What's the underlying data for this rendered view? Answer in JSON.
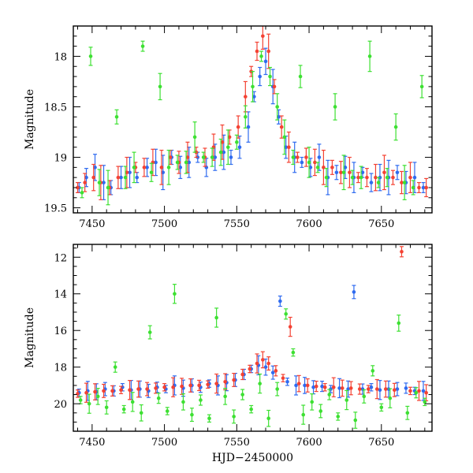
{
  "chart_data": [
    {
      "type": "scatter",
      "title": "",
      "xlabel": "",
      "ylabel": "Magnitude",
      "xlim": [
        7437,
        7685
      ],
      "ylim": [
        19.55,
        17.7
      ],
      "y_inverted": true,
      "x_ticks": [
        7450,
        7500,
        7550,
        7600,
        7650
      ],
      "x_tick_labels": [
        "7450",
        "7500",
        "7550",
        "7600",
        "7650"
      ],
      "y_ticks": [
        18,
        18.5,
        19,
        19.5
      ],
      "y_tick_labels": [
        "18",
        "18.5",
        "19",
        "19.5"
      ],
      "error_bars": true,
      "series": [
        {
          "color": "#2f6bf0",
          "x": [
            7441,
            7446,
            7452,
            7458,
            7463,
            7470,
            7476,
            7481,
            7488,
            7494,
            7499,
            7505,
            7511,
            7517,
            7523,
            7529,
            7535,
            7541,
            7546,
            7552,
            7558,
            7562,
            7566,
            7570,
            7575,
            7579,
            7584,
            7590,
            7595,
            7601,
            7607,
            7613,
            7619,
            7625,
            7631,
            7637,
            7643,
            7649,
            7655,
            7661,
            7667,
            7673,
            7679
          ],
          "y": [
            19.3,
            19.2,
            19.1,
            19.25,
            19.3,
            19.2,
            19.15,
            19.2,
            19.1,
            19.05,
            19.15,
            19.0,
            19.1,
            19.05,
            19.0,
            19.1,
            19.0,
            18.95,
            19.0,
            18.9,
            18.7,
            18.4,
            18.2,
            18.05,
            18.3,
            18.6,
            18.9,
            19.0,
            19.05,
            19.1,
            19.0,
            19.2,
            19.15,
            19.1,
            19.2,
            19.15,
            19.25,
            19.2,
            19.2,
            19.15,
            19.25,
            19.2,
            19.3
          ]
        },
        {
          "color": "#f44233",
          "x": [
            7440,
            7445,
            7451,
            7456,
            7462,
            7468,
            7474,
            7480,
            7486,
            7492,
            7498,
            7504,
            7510,
            7516,
            7522,
            7528,
            7534,
            7540,
            7545,
            7551,
            7556,
            7560,
            7564,
            7568,
            7572,
            7576,
            7581,
            7586,
            7592,
            7598,
            7604,
            7610,
            7616,
            7622,
            7628,
            7634,
            7640,
            7646,
            7652,
            7658,
            7664,
            7670,
            7676,
            7681
          ],
          "y": [
            19.3,
            19.25,
            19.2,
            19.25,
            19.3,
            19.2,
            19.15,
            19.1,
            19.1,
            19.05,
            19.1,
            19.0,
            19.05,
            19.0,
            18.95,
            19.0,
            18.9,
            18.85,
            18.8,
            18.7,
            18.4,
            18.15,
            17.95,
            17.8,
            17.95,
            18.3,
            18.7,
            18.9,
            19.0,
            19.0,
            19.05,
            19.1,
            19.1,
            19.15,
            19.15,
            19.2,
            19.2,
            19.2,
            19.15,
            19.2,
            19.25,
            19.2,
            19.3,
            19.3
          ]
        },
        {
          "color": "#3de032",
          "x": [
            7443,
            7449,
            7455,
            7461,
            7467,
            7473,
            7479,
            7485,
            7491,
            7497,
            7503,
            7509,
            7515,
            7521,
            7527,
            7533,
            7539,
            7544,
            7550,
            7556,
            7561,
            7567,
            7573,
            7578,
            7583,
            7589,
            7594,
            7600,
            7606,
            7612,
            7618,
            7624,
            7630,
            7636,
            7642,
            7648,
            7654,
            7660,
            7666,
            7672,
            7678
          ],
          "y": [
            19.35,
            18.0,
            19.25,
            19.3,
            18.6,
            19.2,
            19.1,
            17.9,
            19.15,
            18.3,
            19.1,
            19.05,
            19.05,
            18.8,
            19.0,
            19.0,
            18.95,
            18.9,
            18.85,
            18.6,
            18.3,
            18.0,
            18.2,
            18.5,
            18.8,
            19.0,
            18.2,
            19.05,
            19.1,
            19.2,
            18.5,
            19.15,
            19.2,
            19.2,
            18.0,
            19.25,
            19.2,
            18.7,
            19.25,
            19.3,
            18.3
          ]
        }
      ]
    },
    {
      "type": "scatter",
      "title": "",
      "xlabel": "HJD−2450000",
      "ylabel": "Magnitude",
      "xlim": [
        7437,
        7685
      ],
      "ylim": [
        21.5,
        11.3
      ],
      "y_inverted": true,
      "x_ticks": [
        7450,
        7500,
        7550,
        7600,
        7650
      ],
      "x_tick_labels": [
        "7450",
        "7500",
        "7550",
        "7600",
        "7650"
      ],
      "y_ticks": [
        12,
        14,
        16,
        18,
        20
      ],
      "y_tick_labels": [
        "12",
        "14",
        "16",
        "18",
        "20"
      ],
      "error_bars": true,
      "series": [
        {
          "color": "#2f6bf0",
          "x": [
            7441,
            7447,
            7453,
            7459,
            7465,
            7471,
            7477,
            7483,
            7489,
            7495,
            7501,
            7507,
            7513,
            7519,
            7525,
            7531,
            7537,
            7543,
            7549,
            7555,
            7560,
            7565,
            7570,
            7575,
            7580,
            7585,
            7591,
            7597,
            7603,
            7609,
            7615,
            7621,
            7627,
            7631,
            7637,
            7643,
            7649,
            7655,
            7661,
            7667,
            7673,
            7679
          ],
          "y": [
            19.4,
            19.3,
            19.35,
            19.2,
            19.3,
            19.1,
            19.25,
            19.2,
            19.3,
            19.1,
            19.2,
            19.0,
            19.15,
            19.0,
            19.1,
            18.9,
            19.0,
            18.85,
            18.7,
            18.4,
            18.1,
            17.9,
            18.0,
            18.3,
            14.4,
            18.8,
            19.0,
            19.0,
            19.1,
            19.05,
            19.2,
            19.15,
            19.2,
            13.9,
            19.2,
            19.1,
            19.25,
            19.2,
            19.2,
            19.15,
            19.3,
            19.3
          ]
        },
        {
          "color": "#f44233",
          "x": [
            7440,
            7446,
            7452,
            7458,
            7464,
            7470,
            7476,
            7482,
            7488,
            7494,
            7500,
            7506,
            7512,
            7518,
            7524,
            7530,
            7536,
            7542,
            7548,
            7554,
            7559,
            7564,
            7568,
            7572,
            7577,
            7582,
            7587,
            7593,
            7599,
            7605,
            7611,
            7617,
            7623,
            7629,
            7635,
            7641,
            7647,
            7653,
            7659,
            7664,
            7670,
            7676,
            7681
          ],
          "y": [
            19.45,
            19.4,
            19.35,
            19.3,
            19.3,
            19.25,
            19.25,
            19.2,
            19.2,
            19.15,
            19.1,
            19.1,
            19.05,
            19.0,
            19.0,
            18.95,
            18.9,
            18.8,
            18.7,
            18.4,
            18.1,
            17.8,
            17.6,
            17.8,
            18.2,
            18.6,
            15.8,
            18.9,
            19.0,
            19.05,
            19.1,
            19.1,
            19.15,
            19.15,
            19.2,
            19.2,
            19.2,
            19.2,
            19.25,
            11.7,
            19.3,
            19.3,
            19.4
          ]
        },
        {
          "color": "#3de032",
          "x": [
            7442,
            7448,
            7454,
            7460,
            7466,
            7472,
            7478,
            7484,
            7490,
            7496,
            7502,
            7507,
            7513,
            7519,
            7525,
            7531,
            7536,
            7542,
            7548,
            7554,
            7560,
            7566,
            7572,
            7578,
            7584,
            7589,
            7596,
            7602,
            7608,
            7614,
            7620,
            7626,
            7632,
            7638,
            7644,
            7650,
            7656,
            7662,
            7668,
            7674,
            7680
          ],
          "y": [
            19.8,
            20.0,
            19.6,
            20.2,
            18.0,
            20.3,
            19.9,
            20.5,
            16.1,
            19.7,
            20.4,
            14.0,
            19.9,
            20.6,
            19.8,
            20.8,
            15.3,
            19.6,
            20.7,
            19.5,
            20.3,
            18.9,
            20.8,
            19.2,
            15.1,
            17.2,
            20.6,
            19.9,
            20.4,
            19.5,
            20.7,
            19.8,
            20.9,
            19.6,
            18.2,
            20.2,
            19.7,
            15.6,
            20.5,
            19.4,
            19.9
          ]
        }
      ]
    }
  ]
}
